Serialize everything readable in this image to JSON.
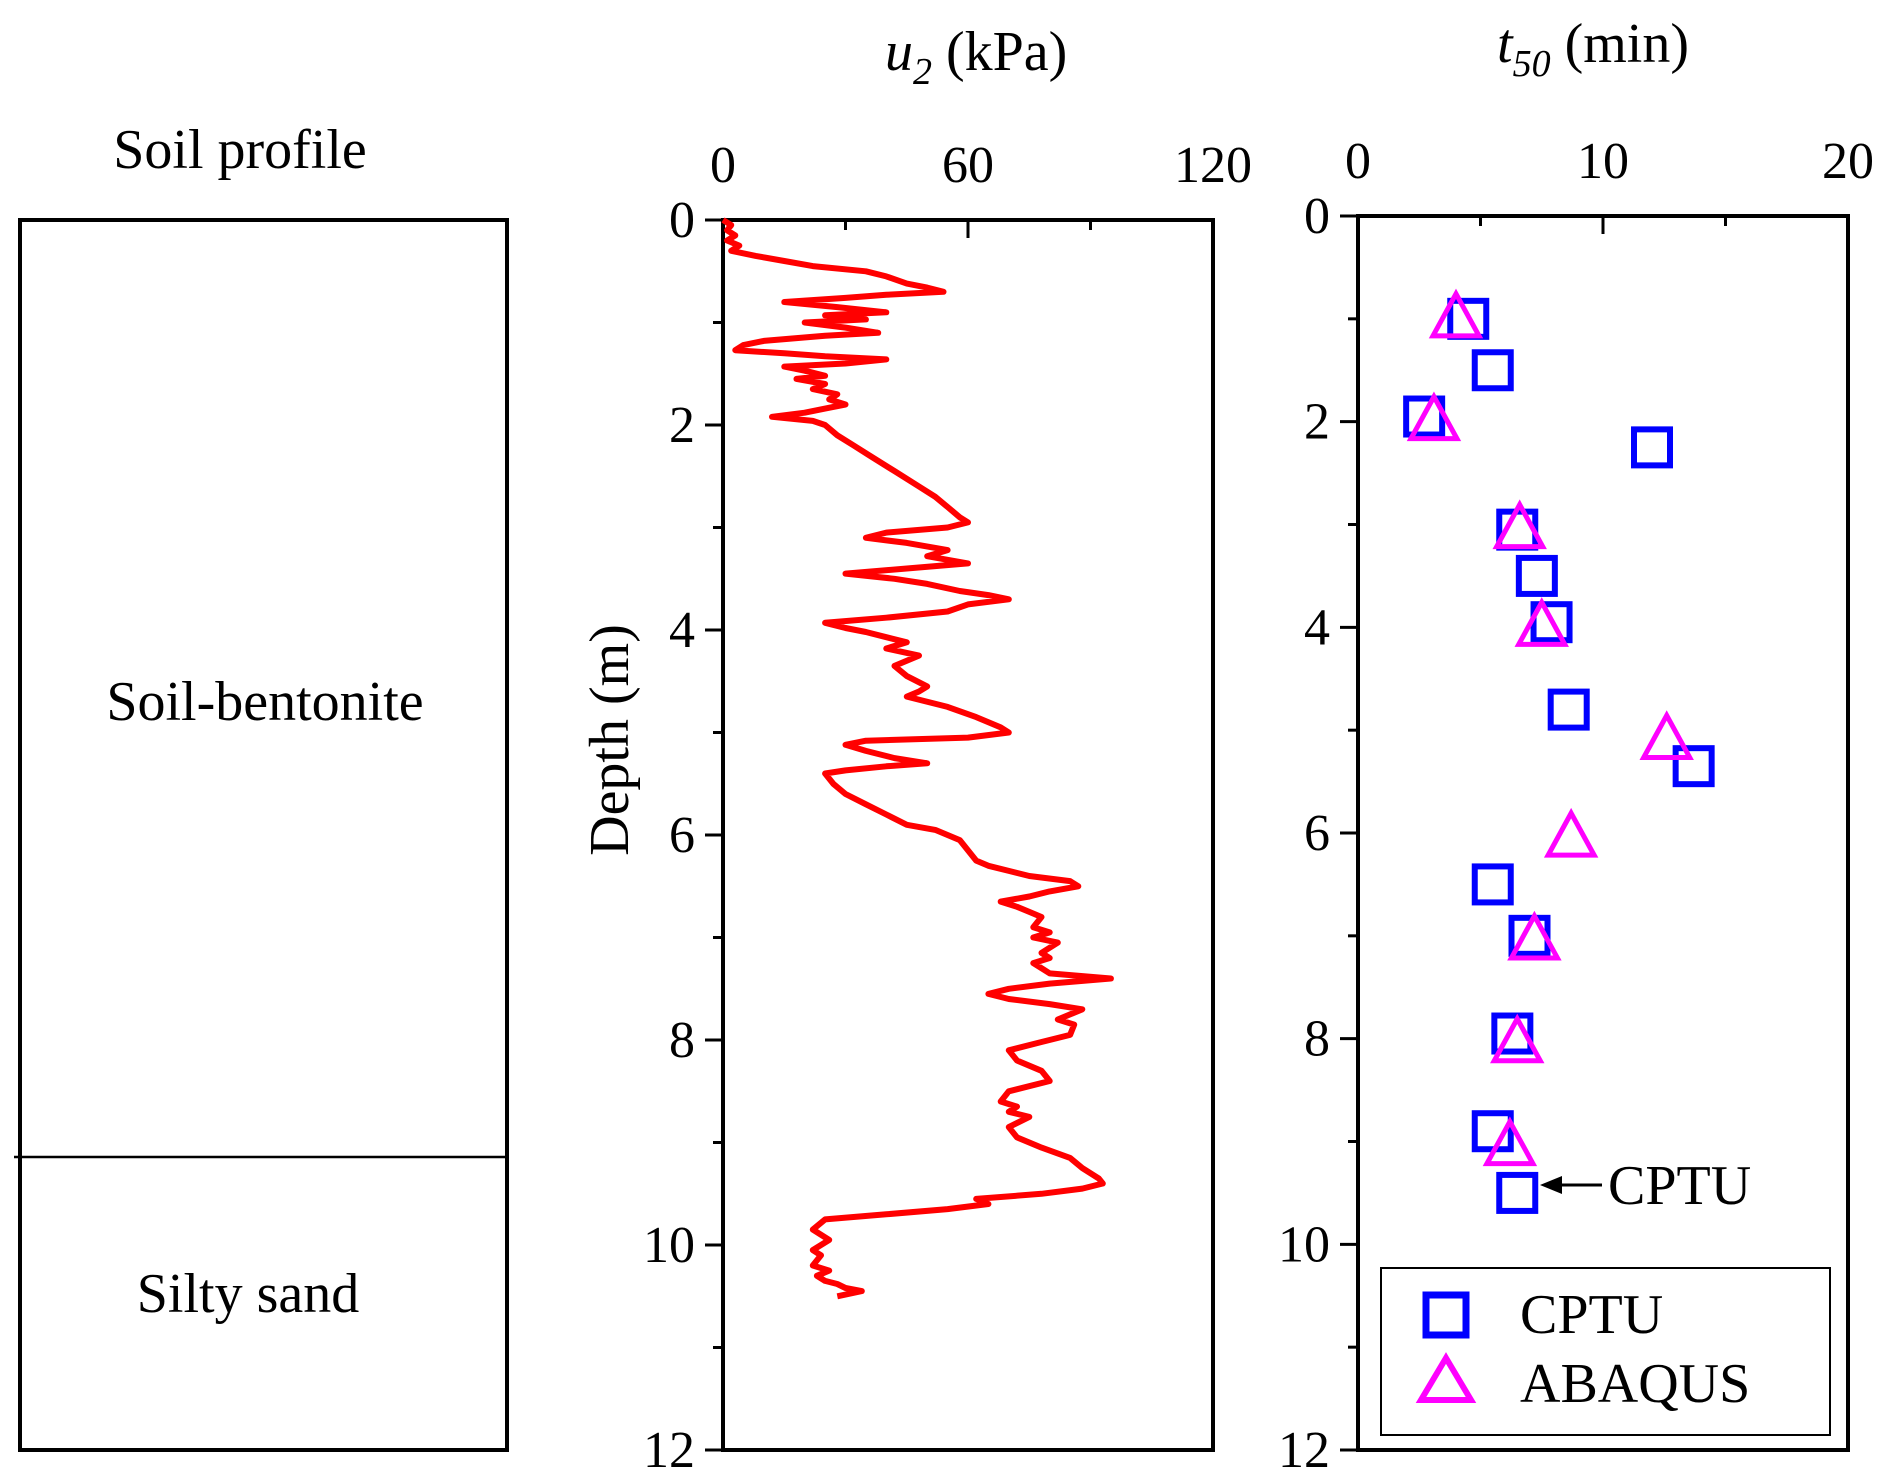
{
  "soil_profile": {
    "title": "Soil profile",
    "layers": [
      {
        "name": "Soil-bentonite",
        "top_m": 0,
        "bottom_m": 9.15
      },
      {
        "name": "Silty sand",
        "top_m": 9.15,
        "bottom_m": 12
      }
    ]
  },
  "chart_data": [
    {
      "type": "line",
      "title": "",
      "xlabel_main": "u",
      "xlabel_sub": "2",
      "xlabel_unit": " (kPa)",
      "ylabel": "Depth (m)",
      "xlim": [
        0,
        120
      ],
      "ylim": [
        0,
        12
      ],
      "x_ticks": [
        0,
        60,
        120
      ],
      "y_ticks": [
        0,
        2,
        4,
        6,
        8,
        10,
        12
      ],
      "color": "#ff0000",
      "series": [
        {
          "name": "u2",
          "points": [
            [
              0,
              0
            ],
            [
              2,
              0.05
            ],
            [
              1,
              0.1
            ],
            [
              3,
              0.15
            ],
            [
              1,
              0.2
            ],
            [
              4,
              0.25
            ],
            [
              2,
              0.3
            ],
            [
              8,
              0.35
            ],
            [
              15,
              0.4
            ],
            [
              22,
              0.45
            ],
            [
              35,
              0.5
            ],
            [
              40,
              0.55
            ],
            [
              45,
              0.62
            ],
            [
              50,
              0.66
            ],
            [
              54,
              0.7
            ],
            [
              40,
              0.73
            ],
            [
              30,
              0.76
            ],
            [
              15,
              0.8
            ],
            [
              28,
              0.85
            ],
            [
              40,
              0.9
            ],
            [
              25,
              0.93
            ],
            [
              35,
              0.97
            ],
            [
              20,
              1.0
            ],
            [
              30,
              1.05
            ],
            [
              38,
              1.1
            ],
            [
              25,
              1.13
            ],
            [
              10,
              1.18
            ],
            [
              5,
              1.22
            ],
            [
              3,
              1.27
            ],
            [
              15,
              1.3
            ],
            [
              25,
              1.33
            ],
            [
              40,
              1.36
            ],
            [
              30,
              1.4
            ],
            [
              15,
              1.43
            ],
            [
              20,
              1.47
            ],
            [
              25,
              1.52
            ],
            [
              18,
              1.55
            ],
            [
              25,
              1.6
            ],
            [
              22,
              1.65
            ],
            [
              28,
              1.7
            ],
            [
              26,
              1.75
            ],
            [
              30,
              1.8
            ],
            [
              25,
              1.84
            ],
            [
              20,
              1.88
            ],
            [
              12,
              1.92
            ],
            [
              22,
              1.96
            ],
            [
              25,
              2.0
            ],
            [
              28,
              2.1
            ],
            [
              32,
              2.2
            ],
            [
              36,
              2.3
            ],
            [
              42,
              2.45
            ],
            [
              48,
              2.6
            ],
            [
              52,
              2.7
            ],
            [
              55,
              2.8
            ],
            [
              58,
              2.9
            ],
            [
              60,
              2.95
            ],
            [
              55,
              3.0
            ],
            [
              40,
              3.05
            ],
            [
              35,
              3.1
            ],
            [
              45,
              3.15
            ],
            [
              55,
              3.22
            ],
            [
              50,
              3.28
            ],
            [
              60,
              3.35
            ],
            [
              45,
              3.4
            ],
            [
              30,
              3.45
            ],
            [
              42,
              3.5
            ],
            [
              50,
              3.55
            ],
            [
              58,
              3.62
            ],
            [
              65,
              3.66
            ],
            [
              70,
              3.7
            ],
            [
              60,
              3.75
            ],
            [
              55,
              3.82
            ],
            [
              40,
              3.88
            ],
            [
              25,
              3.93
            ],
            [
              30,
              3.98
            ],
            [
              35,
              4.02
            ],
            [
              40,
              4.07
            ],
            [
              45,
              4.12
            ],
            [
              40,
              4.18
            ],
            [
              48,
              4.25
            ],
            [
              42,
              4.35
            ],
            [
              45,
              4.45
            ],
            [
              50,
              4.55
            ],
            [
              48,
              4.6
            ],
            [
              45,
              4.65
            ],
            [
              55,
              4.75
            ],
            [
              62,
              4.85
            ],
            [
              68,
              4.95
            ],
            [
              70,
              5.0
            ],
            [
              60,
              5.05
            ],
            [
              35,
              5.08
            ],
            [
              30,
              5.12
            ],
            [
              35,
              5.18
            ],
            [
              42,
              5.25
            ],
            [
              50,
              5.3
            ],
            [
              40,
              5.33
            ],
            [
              30,
              5.37
            ],
            [
              25,
              5.4
            ],
            [
              27,
              5.5
            ],
            [
              30,
              5.6
            ],
            [
              35,
              5.7
            ],
            [
              40,
              5.8
            ],
            [
              45,
              5.9
            ],
            [
              52,
              5.95
            ],
            [
              58,
              6.05
            ],
            [
              60,
              6.15
            ],
            [
              62,
              6.25
            ],
            [
              65,
              6.3
            ],
            [
              70,
              6.35
            ],
            [
              75,
              6.4
            ],
            [
              85,
              6.45
            ],
            [
              87,
              6.5
            ],
            [
              80,
              6.55
            ],
            [
              75,
              6.6
            ],
            [
              68,
              6.65
            ],
            [
              72,
              6.7
            ],
            [
              75,
              6.75
            ],
            [
              78,
              6.8
            ],
            [
              76,
              6.9
            ],
            [
              80,
              6.95
            ],
            [
              76,
              7.0
            ],
            [
              82,
              7.05
            ],
            [
              78,
              7.15
            ],
            [
              80,
              7.2
            ],
            [
              76,
              7.25
            ],
            [
              78,
              7.3
            ],
            [
              80,
              7.35
            ],
            [
              95,
              7.4
            ],
            [
              80,
              7.45
            ],
            [
              70,
              7.5
            ],
            [
              65,
              7.55
            ],
            [
              70,
              7.6
            ],
            [
              80,
              7.65
            ],
            [
              88,
              7.7
            ],
            [
              85,
              7.75
            ],
            [
              82,
              7.8
            ],
            [
              86,
              7.85
            ],
            [
              85,
              7.95
            ],
            [
              78,
              8.02
            ],
            [
              70,
              8.1
            ],
            [
              72,
              8.2
            ],
            [
              78,
              8.3
            ],
            [
              80,
              8.4
            ],
            [
              70,
              8.5
            ],
            [
              68,
              8.6
            ],
            [
              72,
              8.65
            ],
            [
              70,
              8.7
            ],
            [
              75,
              8.75
            ],
            [
              70,
              8.85
            ],
            [
              72,
              8.95
            ],
            [
              78,
              9.05
            ],
            [
              85,
              9.15
            ],
            [
              88,
              9.25
            ],
            [
              92,
              9.35
            ],
            [
              93,
              9.4
            ],
            [
              88,
              9.45
            ],
            [
              78,
              9.5
            ],
            [
              62,
              9.55
            ],
            [
              65,
              9.6
            ],
            [
              55,
              9.65
            ],
            [
              40,
              9.7
            ],
            [
              25,
              9.75
            ],
            [
              22,
              9.85
            ],
            [
              26,
              9.95
            ],
            [
              22,
              10.05
            ],
            [
              24,
              10.1
            ],
            [
              22,
              10.2
            ],
            [
              26,
              10.25
            ],
            [
              23,
              10.3
            ],
            [
              25,
              10.35
            ],
            [
              28,
              10.38
            ],
            [
              30,
              10.42
            ],
            [
              34,
              10.45
            ],
            [
              28,
              10.5
            ]
          ]
        }
      ]
    },
    {
      "type": "scatter",
      "title": "",
      "xlabel_main": "t",
      "xlabel_sub": "50",
      "xlabel_unit": " (min)",
      "xlim": [
        0,
        20
      ],
      "ylim": [
        0,
        12
      ],
      "x_ticks": [
        0,
        10,
        20
      ],
      "y_ticks": [
        0,
        2,
        4,
        6,
        8,
        10,
        12
      ],
      "annotation": "CPTU",
      "annotation_point": [
        6.5,
        9.5
      ],
      "legend": {
        "placement": "bottom-right",
        "entries": [
          "CPTU",
          "ABAQUS"
        ]
      },
      "series": [
        {
          "name": "CPTU",
          "marker": "square",
          "color": "#0000ff",
          "points": [
            [
              4.5,
              1.0
            ],
            [
              5.5,
              1.5
            ],
            [
              2.7,
              1.95
            ],
            [
              12,
              2.25
            ],
            [
              6.5,
              3.05
            ],
            [
              7.3,
              3.5
            ],
            [
              7.9,
              3.95
            ],
            [
              8.6,
              4.8
            ],
            [
              13.7,
              5.35
            ],
            [
              5.5,
              6.5
            ],
            [
              7.0,
              7.0
            ],
            [
              6.3,
              7.95
            ],
            [
              5.5,
              8.9
            ],
            [
              6.5,
              9.5
            ]
          ]
        },
        {
          "name": "ABAQUS",
          "marker": "triangle",
          "color": "#ff00ff",
          "points": [
            [
              4.0,
              1.0
            ],
            [
              3.1,
              2.0
            ],
            [
              6.6,
              3.05
            ],
            [
              7.5,
              4.0
            ],
            [
              12.6,
              5.1
            ],
            [
              8.7,
              6.05
            ],
            [
              7.2,
              7.05
            ],
            [
              6.5,
              8.05
            ],
            [
              6.2,
              9.05
            ]
          ]
        }
      ]
    }
  ]
}
